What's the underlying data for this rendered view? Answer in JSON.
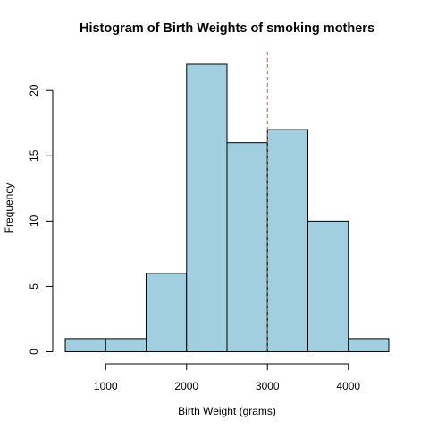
{
  "chart_data": {
    "type": "bar",
    "title": "Histogram of Birth Weights of smoking mothers",
    "xlabel": "Birth Weight (grams)",
    "ylabel": "Frequency",
    "bins": [
      {
        "from": 500,
        "to": 1000,
        "count": 1
      },
      {
        "from": 1000,
        "to": 1500,
        "count": 1
      },
      {
        "from": 1500,
        "to": 2000,
        "count": 6
      },
      {
        "from": 2000,
        "to": 2500,
        "count": 22
      },
      {
        "from": 2500,
        "to": 3000,
        "count": 16
      },
      {
        "from": 3000,
        "to": 3500,
        "count": 17
      },
      {
        "from": 3500,
        "to": 4000,
        "count": 10
      },
      {
        "from": 4000,
        "to": 4500,
        "count": 1
      }
    ],
    "xticks": [
      1000,
      2000,
      3000,
      4000
    ],
    "yticks": [
      0,
      5,
      10,
      15,
      20
    ],
    "xlim": [
      500,
      4500
    ],
    "ylim": [
      0,
      22
    ],
    "vline": {
      "x": 3000,
      "color": "#cd5c5c",
      "style": "dashed"
    },
    "colors": {
      "fill": "#a2cfe0",
      "border": "#000000"
    },
    "grid": false,
    "legend": "none"
  }
}
